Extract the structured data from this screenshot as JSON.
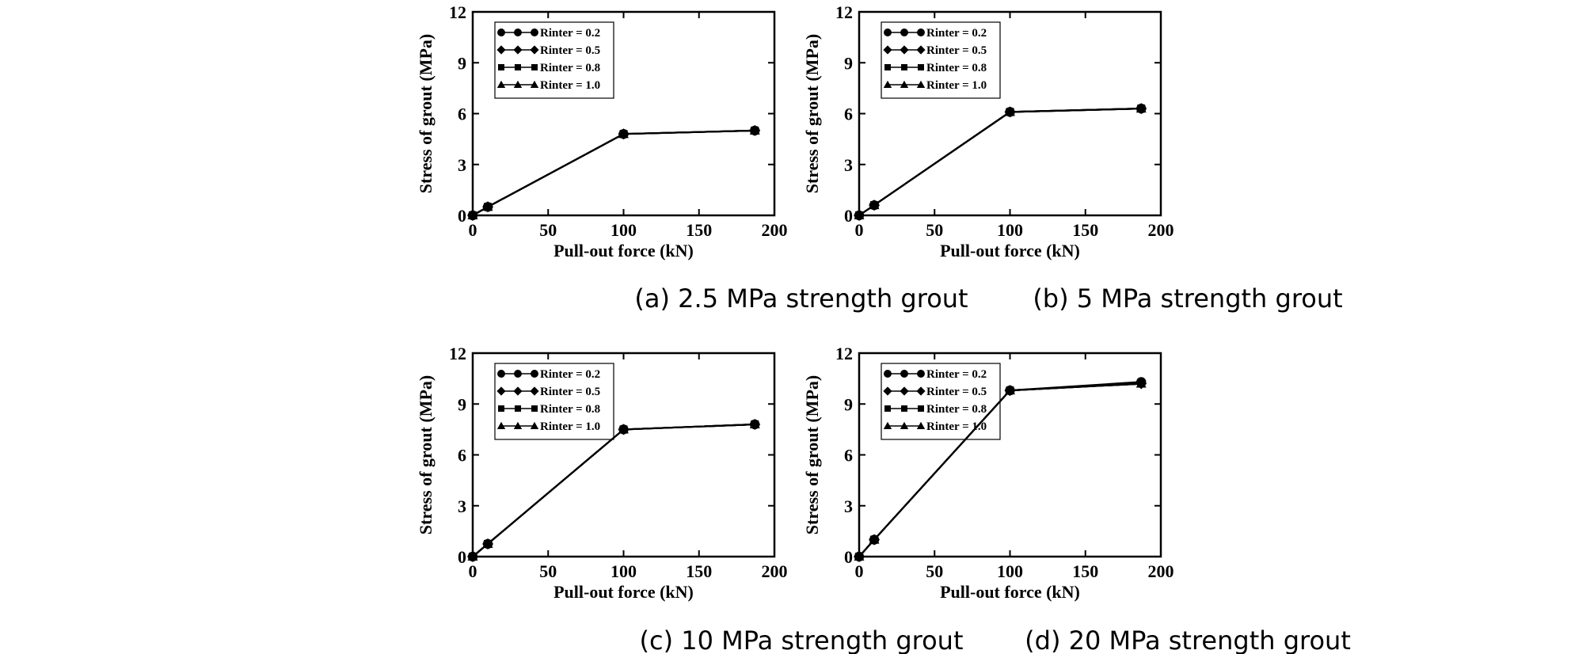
{
  "chart_data": [
    {
      "type": "line",
      "caption": "(a) 2.5 MPa strength grout",
      "xlabel": "Pull-out force (kN)",
      "ylabel": "Stress of grout (MPa)",
      "xlim": [
        0,
        200
      ],
      "ylim": [
        0,
        12
      ],
      "xticks": [
        "0",
        "50",
        "100",
        "150",
        "200"
      ],
      "yticks": [
        "0",
        "3",
        "6",
        "9",
        "12"
      ],
      "grid": false,
      "legend_position": "top-left",
      "series": [
        {
          "name": "Rinter = 0.2",
          "marker": "circle",
          "x": [
            0,
            10,
            100,
            187
          ],
          "y": [
            0,
            0.5,
            4.8,
            5.0
          ]
        },
        {
          "name": "Rinter = 0.5",
          "marker": "diamond",
          "x": [
            0,
            10,
            100,
            187
          ],
          "y": [
            0,
            0.5,
            4.8,
            5.0
          ]
        },
        {
          "name": "Rinter = 0.8",
          "marker": "square",
          "x": [
            0,
            10,
            100,
            187
          ],
          "y": [
            0,
            0.5,
            4.8,
            5.0
          ]
        },
        {
          "name": "Rinter = 1.0",
          "marker": "triangle",
          "x": [
            0,
            10,
            100,
            187
          ],
          "y": [
            0,
            0.5,
            4.8,
            5.0
          ]
        }
      ]
    },
    {
      "type": "line",
      "caption": "(b) 5 MPa strength grout",
      "xlabel": "Pull-out force (kN)",
      "ylabel": "Stress of grout (MPa)",
      "xlim": [
        0,
        200
      ],
      "ylim": [
        0,
        12
      ],
      "xticks": [
        "0",
        "50",
        "100",
        "150",
        "200"
      ],
      "yticks": [
        "0",
        "3",
        "6",
        "9",
        "12"
      ],
      "grid": false,
      "legend_position": "top-left",
      "series": [
        {
          "name": "Rinter = 0.2",
          "marker": "circle",
          "x": [
            0,
            10,
            100,
            187
          ],
          "y": [
            0,
            0.6,
            6.1,
            6.3
          ]
        },
        {
          "name": "Rinter = 0.5",
          "marker": "diamond",
          "x": [
            0,
            10,
            100,
            187
          ],
          "y": [
            0,
            0.6,
            6.1,
            6.3
          ]
        },
        {
          "name": "Rinter = 0.8",
          "marker": "square",
          "x": [
            0,
            10,
            100,
            187
          ],
          "y": [
            0,
            0.6,
            6.1,
            6.3
          ]
        },
        {
          "name": "Rinter = 1.0",
          "marker": "triangle",
          "x": [
            0,
            10,
            100,
            187
          ],
          "y": [
            0,
            0.6,
            6.1,
            6.3
          ]
        }
      ]
    },
    {
      "type": "line",
      "caption": "(c) 10 MPa strength grout",
      "xlabel": "Pull-out force (kN)",
      "ylabel": "Stress of grout (MPa)",
      "xlim": [
        0,
        200
      ],
      "ylim": [
        0,
        12
      ],
      "xticks": [
        "0",
        "50",
        "100",
        "150",
        "200"
      ],
      "yticks": [
        "0",
        "3",
        "6",
        "9",
        "12"
      ],
      "grid": false,
      "legend_position": "top-left",
      "series": [
        {
          "name": "Rinter = 0.2",
          "marker": "circle",
          "x": [
            0,
            10,
            100,
            187
          ],
          "y": [
            0,
            0.75,
            7.5,
            7.8
          ]
        },
        {
          "name": "Rinter = 0.5",
          "marker": "diamond",
          "x": [
            0,
            10,
            100,
            187
          ],
          "y": [
            0,
            0.75,
            7.5,
            7.8
          ]
        },
        {
          "name": "Rinter = 0.8",
          "marker": "square",
          "x": [
            0,
            10,
            100,
            187
          ],
          "y": [
            0,
            0.75,
            7.5,
            7.8
          ]
        },
        {
          "name": "Rinter = 1.0",
          "marker": "triangle",
          "x": [
            0,
            10,
            100,
            187
          ],
          "y": [
            0,
            0.75,
            7.5,
            7.8
          ]
        }
      ]
    },
    {
      "type": "line",
      "caption": "(d) 20 MPa strength grout",
      "xlabel": "Pull-out force (kN)",
      "ylabel": "Stress of grout (MPa)",
      "xlim": [
        0,
        200
      ],
      "ylim": [
        0,
        12
      ],
      "xticks": [
        "0",
        "50",
        "100",
        "150",
        "200"
      ],
      "yticks": [
        "0",
        "3",
        "6",
        "9",
        "12"
      ],
      "grid": false,
      "legend_position": "top-left",
      "series": [
        {
          "name": "Rinter = 0.2",
          "marker": "circle",
          "x": [
            0,
            10,
            100,
            187
          ],
          "y": [
            0,
            1.0,
            9.8,
            10.3
          ]
        },
        {
          "name": "Rinter = 0.5",
          "marker": "diamond",
          "x": [
            0,
            10,
            100,
            187
          ],
          "y": [
            0,
            1.0,
            9.8,
            10.2
          ]
        },
        {
          "name": "Rinter = 0.8",
          "marker": "square",
          "x": [
            0,
            10,
            100,
            187
          ],
          "y": [
            0,
            1.0,
            9.8,
            10.2
          ]
        },
        {
          "name": "Rinter = 1.0",
          "marker": "triangle",
          "x": [
            0,
            10,
            100,
            187
          ],
          "y": [
            0,
            1.0,
            9.8,
            10.2
          ]
        }
      ]
    }
  ]
}
